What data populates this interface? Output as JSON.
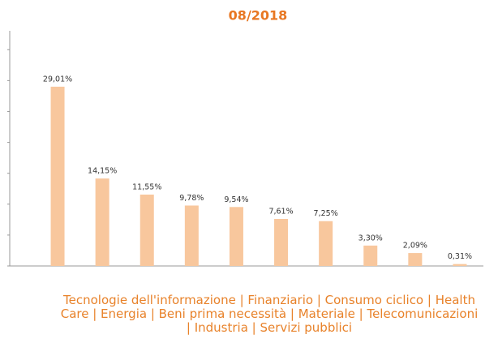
{
  "chart_data": {
    "type": "bar",
    "title": "08/2018",
    "values": [
      29.01,
      14.15,
      11.55,
      9.78,
      9.54,
      7.61,
      7.25,
      3.3,
      2.09,
      0.31
    ],
    "value_labels": [
      "29,01%",
      "14,15%",
      "11,55%",
      "9,78%",
      "9,54%",
      "7,61%",
      "7,25%",
      "3,30%",
      "2,09%",
      "0,31%"
    ],
    "color": "#f8c79d",
    "ylim": [
      0,
      38
    ],
    "yticks": [
      0,
      5,
      10,
      15,
      20,
      25,
      30,
      35
    ],
    "caption": "Tecnologie dell'informazione | Finanziario | Consumo ciclico | Health Care | Energia | Beni prima necessità | Materiale | Telecomunicazioni | Industria | Servizi pubblici"
  }
}
